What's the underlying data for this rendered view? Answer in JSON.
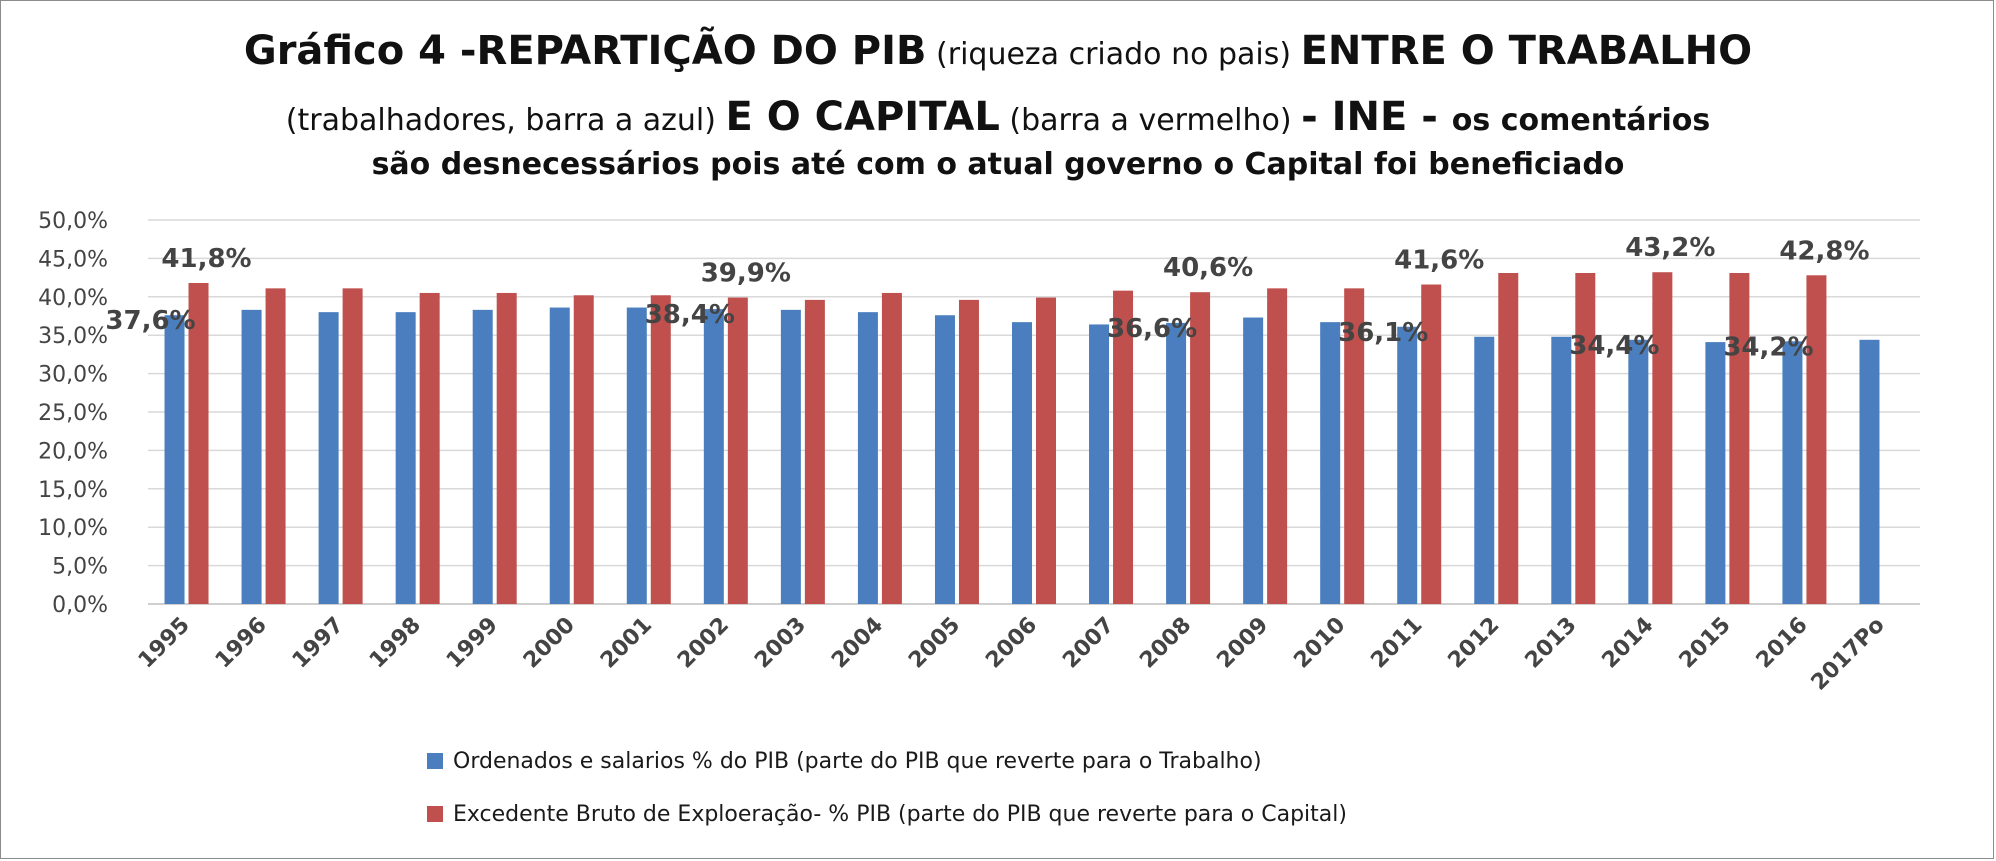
{
  "title": {
    "line1_bold_a": "Gráfico 4 -REPARTIÇÃO DO PIB",
    "line1_normal": " (riqueza criado no pais) ",
    "line1_bold_b": "ENTRE O TRABALHO",
    "line2_normal_a": "(trabalhadores, barra a azul) ",
    "line2_bold_a": "E O CAPITAL",
    "line2_normal_b": " (barra a vermelho) ",
    "line2_bold_b": " - INE - ",
    "line2_bold_small": "os comentários",
    "line3": "são desnecessários pois até com o atual governo o Capital foi beneficiado"
  },
  "colors": {
    "trabalho": "#4a7ebf",
    "capital": "#c0504d",
    "grid": "#d9d9d9",
    "axis": "#bfbfbf",
    "text": "#444444"
  },
  "chart_data": {
    "type": "bar",
    "categories": [
      "1995",
      "1996",
      "1997",
      "1998",
      "1999",
      "2000",
      "2001",
      "2002",
      "2003",
      "2004",
      "2005",
      "2006",
      "2007",
      "2008",
      "2009",
      "2010",
      "2011",
      "2012",
      "2013",
      "2014",
      "2015",
      "2016",
      "2017Po"
    ],
    "series": [
      {
        "name": "Ordenados e salarios % do PIB (parte do PIB que reverte para o Trabalho)",
        "values": [
          37.6,
          38.3,
          38.0,
          38.0,
          38.3,
          38.6,
          38.6,
          38.4,
          38.3,
          38.0,
          37.6,
          36.7,
          36.4,
          36.6,
          37.3,
          36.7,
          36.1,
          34.8,
          34.8,
          34.4,
          34.1,
          34.2,
          34.4
        ]
      },
      {
        "name": "Excedente Bruto de Exploeração- % PIB (parte do PIB que reverte para o Capital)",
        "values": [
          41.8,
          41.1,
          41.1,
          40.5,
          40.5,
          40.2,
          40.2,
          39.9,
          39.6,
          40.5,
          39.6,
          39.9,
          40.8,
          40.6,
          41.1,
          41.1,
          41.6,
          43.1,
          43.1,
          43.2,
          43.1,
          42.8,
          null
        ]
      }
    ],
    "data_labels": [
      {
        "series": 0,
        "index": 0,
        "text": "37,6%"
      },
      {
        "series": 1,
        "index": 0,
        "text": "41,8%"
      },
      {
        "series": 0,
        "index": 7,
        "text": "38,4%"
      },
      {
        "series": 1,
        "index": 7,
        "text": "39,9%"
      },
      {
        "series": 0,
        "index": 13,
        "text": "36,6%"
      },
      {
        "series": 1,
        "index": 13,
        "text": "40,6%"
      },
      {
        "series": 0,
        "index": 16,
        "text": "36,1%"
      },
      {
        "series": 1,
        "index": 16,
        "text": "41,6%"
      },
      {
        "series": 0,
        "index": 19,
        "text": "34,4%"
      },
      {
        "series": 1,
        "index": 19,
        "text": "43,2%"
      },
      {
        "series": 0,
        "index": 21,
        "text": "34,2%"
      },
      {
        "series": 1,
        "index": 21,
        "text": "42,8%"
      }
    ],
    "yticks": [
      "0,0%",
      "5,0%",
      "10,0%",
      "15,0%",
      "20,0%",
      "25,0%",
      "30,0%",
      "35,0%",
      "40,0%",
      "45,0%",
      "50,0%"
    ],
    "ylim": [
      0,
      50
    ],
    "grid": true,
    "legend_position": "bottom"
  }
}
